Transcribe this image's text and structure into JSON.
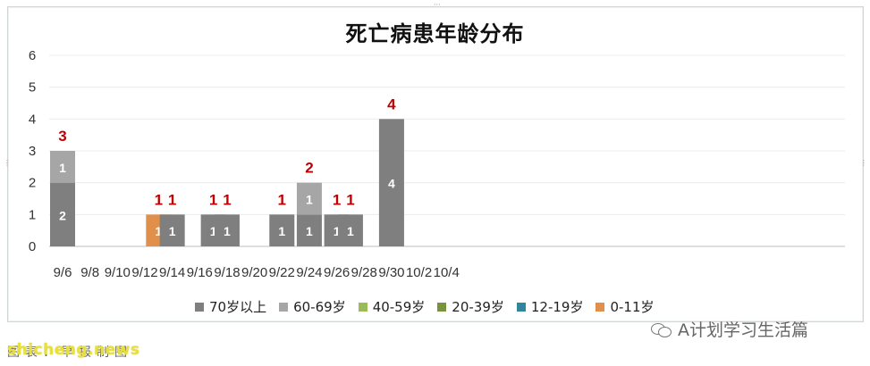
{
  "chart_data": {
    "type": "bar",
    "stacked": true,
    "title": "死亡病患年龄分布",
    "ylim": [
      0,
      6
    ],
    "yticks": [
      "0",
      "1",
      "2",
      "3",
      "4",
      "5",
      "6"
    ],
    "xtick_labels": [
      "9/6",
      "9/8",
      "9/10",
      "9/12",
      "9/14",
      "9/16",
      "9/18",
      "9/20",
      "9/22",
      "9/24",
      "9/26",
      "9/28",
      "9/30",
      "10/2",
      "10/4"
    ],
    "categories": [
      "9/6",
      "9/13",
      "9/14",
      "9/17",
      "9/18",
      "9/22",
      "9/24",
      "9/26",
      "9/27",
      "9/30"
    ],
    "series": [
      {
        "name": "70岁以上",
        "color": "#7f7f7f",
        "values": [
          2,
          0,
          1,
          1,
          1,
          1,
          1,
          1,
          1,
          4
        ]
      },
      {
        "name": "60-69岁",
        "color": "#a6a6a6",
        "values": [
          1,
          0,
          0,
          0,
          0,
          0,
          1,
          0,
          0,
          0
        ]
      },
      {
        "name": "40-59岁",
        "color": "#9bbb59",
        "values": [
          0,
          0,
          0,
          0,
          0,
          0,
          0,
          0,
          0,
          0
        ]
      },
      {
        "name": "20-39岁",
        "color": "#77933c",
        "values": [
          0,
          0,
          0,
          0,
          0,
          0,
          0,
          0,
          0,
          0
        ]
      },
      {
        "name": "12-19岁",
        "color": "#31859c",
        "values": [
          0,
          0,
          0,
          0,
          0,
          0,
          0,
          0,
          0,
          0
        ]
      },
      {
        "name": "0-11岁",
        "color": "#e0904a",
        "values": [
          0,
          1,
          0,
          0,
          0,
          0,
          0,
          0,
          0,
          0
        ]
      }
    ],
    "totals": [
      3,
      1,
      1,
      1,
      1,
      1,
      2,
      1,
      1,
      4
    ],
    "total_label_color": "#c00000",
    "grid": true,
    "legend_position": "bottom"
  },
  "caption": "图表：早报制图",
  "watermark": "shicheng.news",
  "brand": {
    "name": "A计划学习生活篇",
    "icon": "wechat-icon"
  }
}
